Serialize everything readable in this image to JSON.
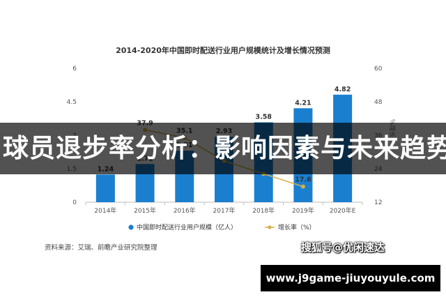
{
  "chart_data": {
    "type": "bar",
    "title": "2014-2020年中国即时配送行业用户规模统计及增长情况预测",
    "categories": [
      "2014年",
      "2015年",
      "2016年",
      "2017年",
      "2018年",
      "2019年",
      "2020年E"
    ],
    "series": [
      {
        "name": "中国即时配送行业用户规模（亿人）",
        "type": "bar",
        "axis": "left",
        "values": [
          1.24,
          1.71,
          2.31,
          2.93,
          3.58,
          4.21,
          4.82
        ],
        "labels": [
          "1.24",
          "1.71",
          "2.31",
          "2.93",
          "3.58",
          "4.21",
          "4.82"
        ]
      },
      {
        "name": "增长率（%）",
        "type": "line",
        "axis": "right",
        "x": [
          "2015年",
          "2016年",
          "2017年",
          "2018年",
          "2019年"
        ],
        "values": [
          37.9,
          35.1,
          26.8,
          22.2,
          17.6
        ],
        "labels": [
          "37.9",
          "35.1",
          "",
          "",
          "17.6"
        ]
      }
    ],
    "y_left": {
      "ticks": [
        "0",
        "1.5",
        "3",
        "4.5",
        "6"
      ],
      "ylim": [
        0,
        6
      ]
    },
    "y_right": {
      "ticks": [
        "12",
        "24",
        "36",
        "48",
        "60"
      ],
      "ylim": [
        12,
        60
      ],
      "label": "%增长"
    },
    "legend_position": "bottom",
    "grid": false,
    "colors": {
      "bar": "#1b7fcf",
      "line": "#d4b04a"
    },
    "source": "资料来源：艾瑞、前瞻产业研究院整理"
  },
  "overlay": {
    "banner_title": "球员退步率分析：影响因素与未来趋势",
    "sohu_watermark": "搜狐号@优闲速达",
    "site_url": "www.j9game-jiuyouyule.com"
  }
}
